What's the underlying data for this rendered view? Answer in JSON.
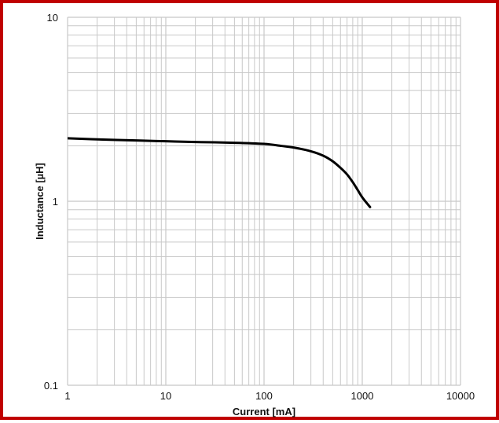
{
  "chart_data": {
    "type": "line",
    "title": "",
    "xlabel": "Current [mA]",
    "ylabel": "Inductance [µH]",
    "xscale": "log",
    "yscale": "log",
    "xlim": [
      1,
      10000
    ],
    "ylim": [
      0.1,
      10
    ],
    "grid": true,
    "legend": "none",
    "x_ticks": [
      {
        "value": 1,
        "label": "1"
      },
      {
        "value": 10,
        "label": "10"
      },
      {
        "value": 100,
        "label": "100"
      },
      {
        "value": 1000,
        "label": "1000"
      },
      {
        "value": 10000,
        "label": "10000"
      }
    ],
    "y_ticks": [
      {
        "value": 0.1,
        "label": "0.1"
      },
      {
        "value": 1,
        "label": "1"
      },
      {
        "value": 10,
        "label": "10"
      }
    ],
    "series": [
      {
        "color": "#000000",
        "x": [
          1,
          2,
          5,
          10,
          20,
          50,
          100,
          150,
          200,
          300,
          400,
          500,
          600,
          700,
          800,
          900,
          1000,
          1200
        ],
        "y": [
          2.2,
          2.17,
          2.14,
          2.12,
          2.1,
          2.08,
          2.05,
          2.0,
          1.96,
          1.87,
          1.77,
          1.65,
          1.52,
          1.4,
          1.27,
          1.15,
          1.05,
          0.93
        ]
      }
    ],
    "colors": {
      "border": "#c00000",
      "grid": "#c8c8c8",
      "line": "#000000",
      "text": "#111111"
    }
  }
}
